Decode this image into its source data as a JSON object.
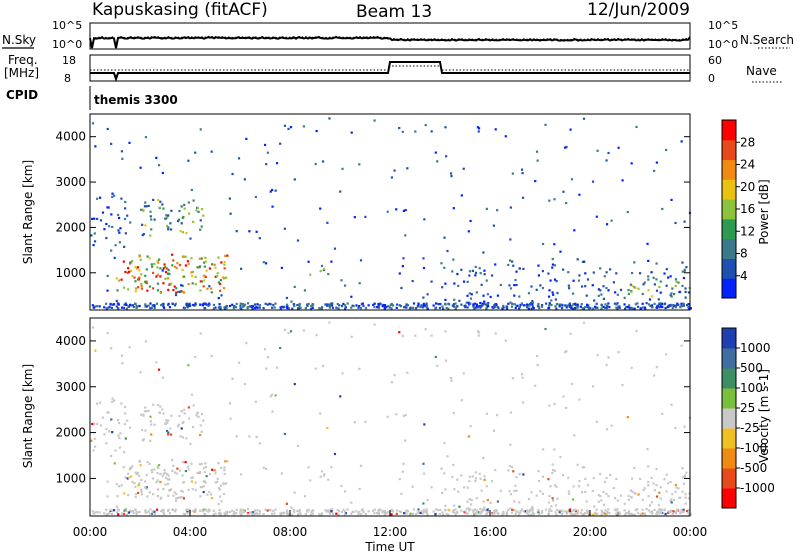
{
  "header": {
    "station": "Kapuskasing (fitACF)",
    "beam": "Beam 13",
    "date": "12/Jun/2009"
  },
  "noise_panel": {
    "left_label": "N.Sky",
    "right_label": "N.Search",
    "left_ticks": [
      "10^5",
      "10^0"
    ],
    "right_ticks": [
      "10^5",
      "10^0"
    ]
  },
  "freq_panel": {
    "left_label_1": "Freq.",
    "left_label_2": "[MHz]",
    "right_label": "Nave",
    "left_ticks": [
      "18",
      "8"
    ],
    "right_ticks": [
      "60",
      "0"
    ]
  },
  "cpid": {
    "label": "CPID",
    "value": "themis 3300"
  },
  "chart_data": [
    {
      "type": "heatmap",
      "title": "",
      "ylabel": "Slant Range [km]",
      "xlabel": "",
      "ylim": [
        180,
        4500
      ],
      "yticks": [
        1000,
        2000,
        3000,
        4000
      ],
      "colorbar": {
        "label": "Power [dB]",
        "ticks": [
          4,
          8,
          12,
          16,
          20,
          24,
          28
        ],
        "colors": [
          "#0022ff",
          "#1f4fb0",
          "#3b7a8a",
          "#2e9950",
          "#8ec23a",
          "#e8c20f",
          "#f08a10",
          "#e84a1a",
          "#ff0000"
        ]
      },
      "regions": [
        {
          "t0": 1.0,
          "t1": 5.5,
          "r0": 550,
          "r1": 1400,
          "level": "high"
        },
        {
          "t0": 0.0,
          "t1": 1.5,
          "r0": 1500,
          "r1": 2800,
          "level": "low"
        },
        {
          "t0": 2.0,
          "t1": 4.5,
          "r0": 1800,
          "r1": 2600,
          "level": "mid"
        },
        {
          "t0": 8.5,
          "t1": 9.5,
          "r0": 900,
          "r1": 1100,
          "level": "mid"
        },
        {
          "t0": 14.0,
          "t1": 24.0,
          "r0": 200,
          "r1": 1300,
          "level": "low"
        },
        {
          "t0": 21.5,
          "t1": 24.0,
          "r0": 450,
          "r1": 800,
          "level": "mid"
        }
      ]
    },
    {
      "type": "heatmap",
      "title": "",
      "ylabel": "Slant Range [km]",
      "xlabel": "Time UT",
      "xticks": [
        "00:00",
        "04:00",
        "08:00",
        "12:00",
        "16:00",
        "20:00",
        "00:00"
      ],
      "ylim": [
        180,
        4500
      ],
      "yticks": [
        1000,
        2000,
        3000,
        4000
      ],
      "colorbar": {
        "label": "Velocity [m s-1]",
        "ticks": [
          "1000",
          "500",
          "100",
          "25",
          "-25",
          "-100",
          "-500",
          "-1000"
        ],
        "colors": [
          "#1f3fb0",
          "#3f6ea0",
          "#3d8f63",
          "#7abf3d",
          "#c8c8c8",
          "#f0c020",
          "#f08a10",
          "#e84a1a",
          "#ff0000"
        ]
      }
    }
  ]
}
